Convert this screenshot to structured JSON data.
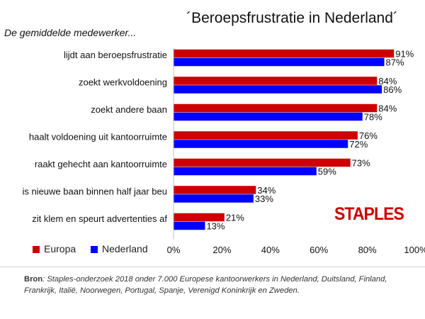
{
  "chart_data": {
    "type": "bar",
    "orientation": "horizontal",
    "title": "´Beroepsfrustratie in Nederland´",
    "subtitle": "De gemiddelde medewerker...",
    "categories": [
      "lijdt aan beroepsfrustratie",
      "zoekt werkvoldoening",
      "zoekt andere baan",
      "haalt voldoening uit kantoorruimte",
      "raakt gehecht aan kantoorruimte",
      "is nieuwe baan binnen half jaar beu",
      "zit klem en speurt advertenties af"
    ],
    "series": [
      {
        "name": "Europa",
        "color": "#cc0000",
        "values": [
          91,
          84,
          84,
          76,
          73,
          34,
          21
        ]
      },
      {
        "name": "Nederland",
        "color": "#0000ff",
        "values": [
          87,
          86,
          78,
          72,
          59,
          33,
          13
        ]
      }
    ],
    "xlim": [
      0,
      100
    ],
    "ticks": [
      "0%",
      "20%",
      "40%",
      "60%",
      "80%",
      "100%"
    ],
    "value_suffix": "%",
    "grid": false,
    "legend_position": "bottom-left"
  },
  "logo_text": "STAPLES",
  "source": {
    "label": "Bron",
    "text": ": Staples-onderzoek 2018 onder 7.000 Europese kantoorwerkers in Nederland, Duitsland, Finland, Frankrijk, Italië, Noorwegen, Portugal, Spanje, Verenigd Koninkrijk en Zweden."
  }
}
